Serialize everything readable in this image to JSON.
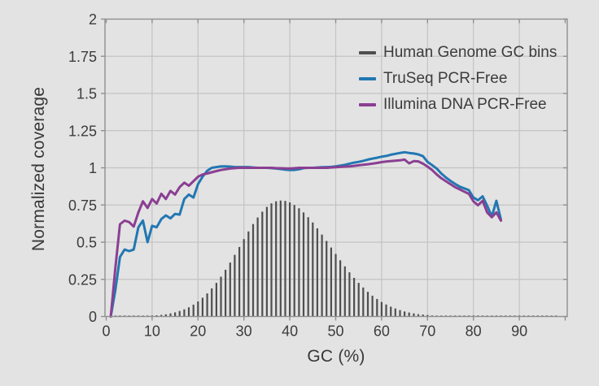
{
  "chart_data": {
    "type": "line",
    "title": "",
    "xlabel": "GC (%)",
    "ylabel": "Normalized coverage",
    "xlim": [
      0,
      100
    ],
    "ylim": [
      0,
      2
    ],
    "grid": true,
    "legend_position": "top-right-inside",
    "x_ticks": {
      "values": [
        0,
        10,
        20,
        30,
        40,
        50,
        60,
        70,
        80,
        90,
        100
      ],
      "labels": [
        "0",
        "10",
        "20",
        "30",
        "40",
        "50",
        "60",
        "70",
        "80",
        "90",
        ""
      ]
    },
    "y_ticks": {
      "values": [
        0,
        0.25,
        0.5,
        0.75,
        1,
        1.25,
        1.5,
        1.75,
        2
      ],
      "labels": [
        "0",
        "0.25",
        "0.5",
        "0.75",
        "1",
        "1.25",
        "1.5",
        "1.75",
        "2"
      ]
    },
    "series": [
      {
        "name": "Human Genome GC bins",
        "type": "bar",
        "color": "#4f4f4f",
        "x_start": 1,
        "x_step": 1,
        "values": [
          0.004,
          0.004,
          0.004,
          0.004,
          0.004,
          0.004,
          0.004,
          0.004,
          0.004,
          0.006,
          0.008,
          0.011,
          0.015,
          0.021,
          0.028,
          0.037,
          0.048,
          0.062,
          0.08,
          0.101,
          0.126,
          0.155,
          0.189,
          0.226,
          0.268,
          0.314,
          0.363,
          0.415,
          0.468,
          0.521,
          0.572,
          0.622,
          0.666,
          0.705,
          0.737,
          0.761,
          0.775,
          0.78,
          0.777,
          0.767,
          0.75,
          0.728,
          0.7,
          0.668,
          0.632,
          0.593,
          0.551,
          0.508,
          0.464,
          0.421,
          0.378,
          0.337,
          0.297,
          0.26,
          0.226,
          0.195,
          0.166,
          0.14,
          0.118,
          0.098,
          0.081,
          0.066,
          0.054,
          0.043,
          0.034,
          0.027,
          0.021,
          0.016,
          0.013,
          0.01,
          0.007,
          0.006,
          0.005,
          0.004,
          0.004,
          0.004,
          0.004,
          0.004,
          0.004,
          0.004,
          0.004,
          0.004,
          0.004,
          0.004,
          0.004,
          0.004,
          0.004,
          0.004,
          0.004,
          0.004,
          0.004,
          0.004,
          0.004,
          0.004,
          0.004,
          0.004,
          0.004,
          0.004
        ]
      },
      {
        "name": "TruSeq PCR-Free",
        "type": "line",
        "color": "#2277b2",
        "x_start": 1,
        "x_step": 1,
        "values": [
          0,
          0.18,
          0.4,
          0.45,
          0.44,
          0.45,
          0.6,
          0.645,
          0.5,
          0.61,
          0.6,
          0.655,
          0.68,
          0.66,
          0.69,
          0.685,
          0.79,
          0.82,
          0.8,
          0.89,
          0.94,
          0.98,
          1.0,
          1.005,
          1.01,
          1.01,
          1.008,
          1.005,
          1.005,
          1.005,
          1.005,
          1.002,
          1.0,
          1.0,
          1.0,
          0.998,
          0.995,
          0.992,
          0.988,
          0.985,
          0.986,
          0.99,
          0.998,
          1.0,
          1.0,
          1.002,
          1.004,
          1.005,
          1.006,
          1.01,
          1.015,
          1.02,
          1.028,
          1.035,
          1.04,
          1.047,
          1.055,
          1.062,
          1.068,
          1.075,
          1.08,
          1.088,
          1.094,
          1.1,
          1.105,
          1.1,
          1.096,
          1.09,
          1.078,
          1.04,
          1.018,
          0.995,
          0.962,
          0.935,
          0.912,
          0.892,
          0.873,
          0.862,
          0.85,
          0.8,
          0.782,
          0.808,
          0.745,
          0.672,
          0.778,
          0.652
        ]
      },
      {
        "name": "Illumina DNA PCR-Free",
        "type": "line",
        "color": "#8a3f92",
        "x_start": 1,
        "x_step": 1,
        "values": [
          0,
          0.33,
          0.62,
          0.645,
          0.635,
          0.605,
          0.7,
          0.775,
          0.73,
          0.79,
          0.76,
          0.825,
          0.79,
          0.845,
          0.82,
          0.87,
          0.9,
          0.88,
          0.91,
          0.94,
          0.955,
          0.962,
          0.97,
          0.978,
          0.985,
          0.99,
          0.995,
          0.998,
          1.0,
          1.0,
          1.0,
          1.0,
          1.0,
          1.0,
          1.0,
          1.0,
          0.998,
          0.997,
          0.996,
          0.995,
          0.997,
          1.0,
          1.0,
          1.0,
          1.0,
          1.0,
          1.0,
          1.0,
          1.002,
          1.004,
          1.006,
          1.008,
          1.01,
          1.013,
          1.017,
          1.02,
          1.024,
          1.028,
          1.033,
          1.038,
          1.042,
          1.045,
          1.048,
          1.05,
          1.055,
          1.03,
          1.045,
          1.043,
          1.028,
          1.008,
          0.985,
          0.955,
          0.93,
          0.91,
          0.89,
          0.87,
          0.855,
          0.84,
          0.825,
          0.775,
          0.748,
          0.778,
          0.7,
          0.668,
          0.7,
          0.645
        ]
      }
    ]
  },
  "colors": {
    "background": "#e3e3e3",
    "grid": "#c3c3c3",
    "spine": "#909090",
    "text": "#3c3c3c"
  }
}
